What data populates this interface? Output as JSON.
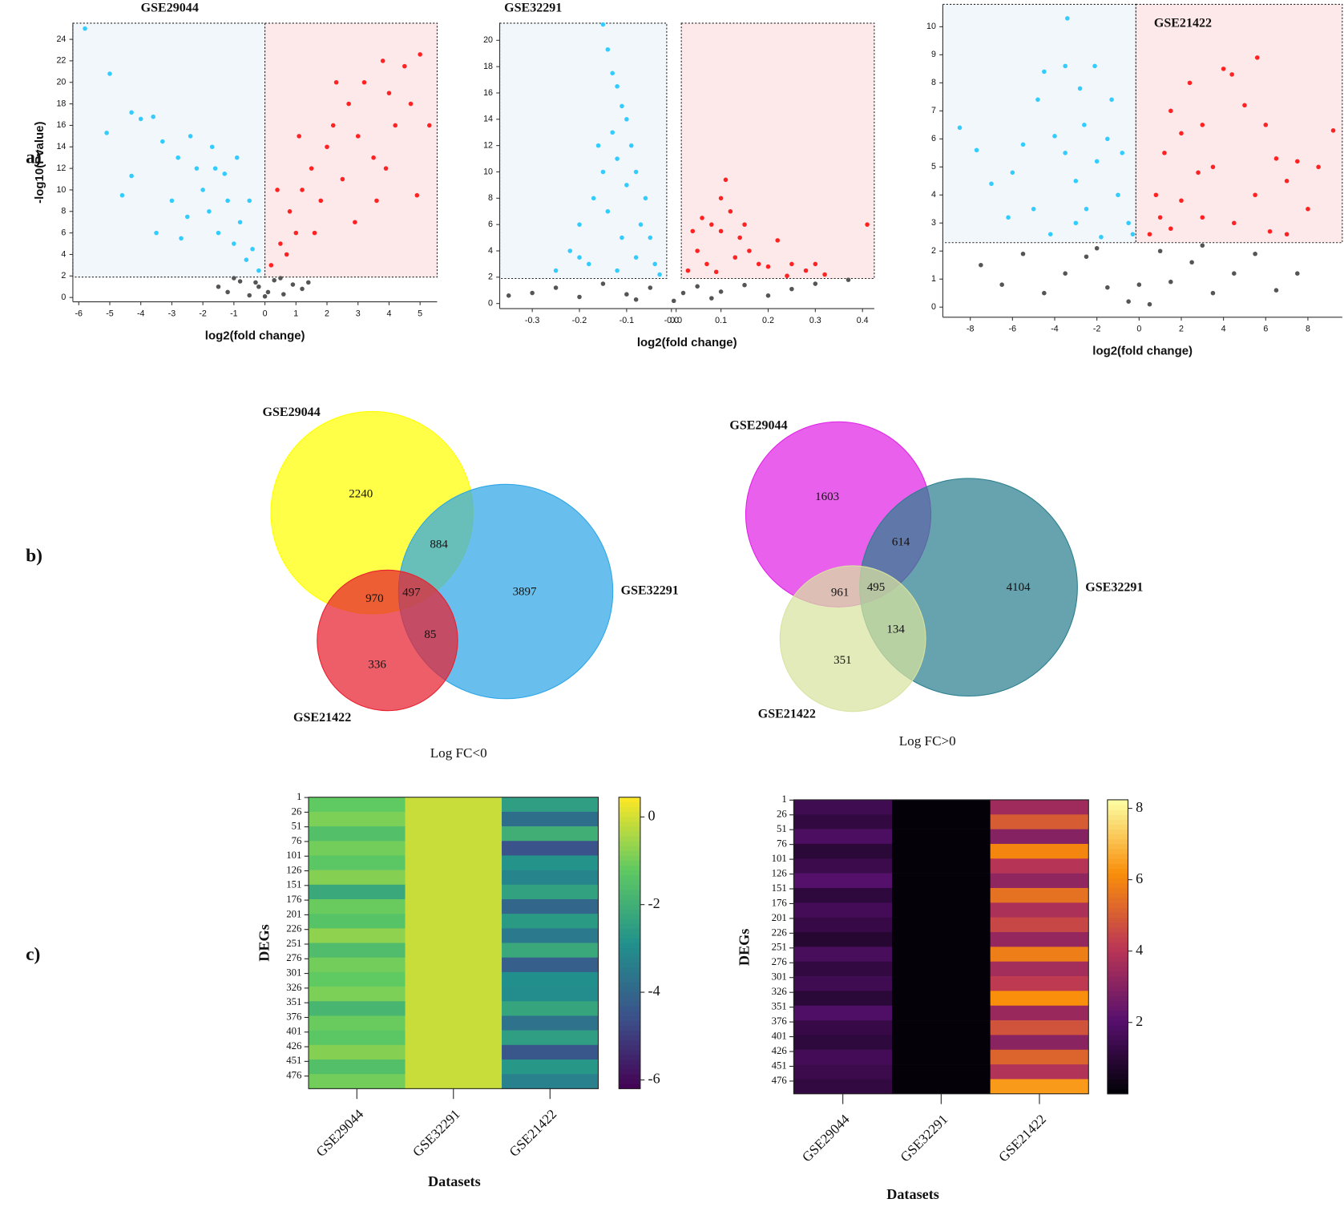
{
  "panel_labels": [
    "a)",
    "b)",
    "c)"
  ],
  "chart_data": [
    {
      "type": "scatter",
      "title": "GSE29044",
      "xlabel": "log2(fold change)",
      "ylabel": "-log10(Pvalue)",
      "xlim": [
        -6.19,
        5.55
      ],
      "ylim": [
        -0.4,
        25.5
      ],
      "xticks": [
        -6,
        -5,
        -4,
        -3,
        -2,
        -1,
        0,
        1,
        2,
        3,
        4,
        5
      ],
      "yticks": [
        0,
        2,
        4,
        6,
        8,
        10,
        12,
        14,
        16,
        18,
        20,
        22,
        24
      ],
      "cutoff_x": [
        0,
        0
      ],
      "cutoff_y": 1.9,
      "series": [
        {
          "color": "#33ccff",
          "x": [
            -5.8,
            -5,
            -5.1,
            -4.3,
            -4,
            -3.6,
            -4.3,
            -4.6,
            -3.5,
            -3.3,
            -2.8,
            -2.4,
            -2.2,
            -2,
            -1.8,
            -1.6,
            -1.5,
            -1.2,
            -1,
            -0.8,
            -0.6,
            -0.4,
            -0.2,
            -2.7,
            -1.3,
            -0.9,
            -3,
            -2.5,
            -0.5,
            -1.7
          ],
          "y": [
            25,
            20.8,
            15.3,
            17.2,
            16.6,
            16.8,
            11.3,
            9.5,
            6,
            14.5,
            13,
            15,
            12,
            10,
            8,
            12,
            6,
            9,
            5,
            7,
            3.5,
            4.5,
            2.5,
            5.5,
            11.5,
            13,
            9,
            7.5,
            9,
            14
          ]
        },
        {
          "color": "#ff2222",
          "x": [
            0.2,
            0.5,
            0.8,
            1,
            1.2,
            1.5,
            1.8,
            2,
            2.2,
            2.5,
            2.7,
            3,
            3.2,
            3.5,
            3.8,
            4,
            4.2,
            4.5,
            4.7,
            5,
            5.3,
            4.9,
            0.4,
            1.1,
            2.9,
            3.6,
            0.7,
            1.6,
            2.3,
            3.9
          ],
          "y": [
            3,
            5,
            8,
            6,
            10,
            12,
            9,
            14,
            16,
            11,
            18,
            15,
            20,
            13,
            22,
            19,
            16,
            21.5,
            18,
            22.6,
            16,
            9.5,
            10,
            15,
            7,
            9,
            4,
            6,
            20,
            12
          ]
        },
        {
          "color": "#555555",
          "x": [
            -1.5,
            -1.2,
            -0.8,
            -0.5,
            -0.2,
            0.1,
            0.3,
            0.6,
            0.9,
            1.2,
            -1,
            0.5,
            1.4,
            -0.3,
            0
          ],
          "y": [
            1,
            0.5,
            1.5,
            0.2,
            1,
            0.5,
            1.6,
            0.3,
            1.2,
            0.8,
            1.8,
            1.8,
            1.4,
            1.4,
            0.1
          ]
        }
      ]
    },
    {
      "type": "scatter",
      "title": "GSE32291",
      "xlabel": "log2(fold change)",
      "xlim": [
        -0.369,
        0.425
      ],
      "ylim": [
        -0.39,
        21.3
      ],
      "xticks": [
        -0.3,
        -0.2,
        -0.1,
        {
          "value": -0.005,
          "label": "-0.0"
        },
        {
          "value": 0.005,
          "label": "0.0"
        },
        0.1,
        0.2,
        0.3,
        0.4
      ],
      "yticks": [
        0,
        2,
        4,
        6,
        8,
        10,
        12,
        14,
        16,
        18,
        20
      ],
      "cutoff_x": [
        -0.015,
        0.016
      ],
      "cutoff_y": 1.9,
      "series": [
        {
          "color": "#33ccff",
          "x": [
            -0.15,
            -0.14,
            -0.13,
            -0.12,
            -0.11,
            -0.1,
            -0.13,
            -0.12,
            -0.15,
            -0.09,
            -0.08,
            -0.17,
            -0.2,
            -0.22,
            -0.25,
            -0.06,
            -0.05,
            -0.04,
            -0.03,
            -0.14,
            -0.11,
            -0.18,
            -0.1,
            -0.07,
            -0.16,
            -0.12,
            -0.08,
            -0.2
          ],
          "y": [
            21.2,
            19.3,
            17.5,
            16.5,
            15,
            14,
            13,
            11,
            10,
            12,
            10,
            8,
            6,
            4,
            2.5,
            8,
            5,
            3,
            2.2,
            7,
            5,
            3,
            9,
            6,
            12,
            2.5,
            3.5,
            3.5
          ]
        },
        {
          "color": "#ff2222",
          "x": [
            0.03,
            0.05,
            0.08,
            0.1,
            0.11,
            0.12,
            0.14,
            0.16,
            0.18,
            0.2,
            0.22,
            0.25,
            0.28,
            0.32,
            0.41,
            0.07,
            0.1,
            0.13,
            0.06,
            0.15,
            0.04,
            0.09,
            0.24,
            0.3
          ],
          "y": [
            2.5,
            4,
            6,
            8,
            9.4,
            7,
            5,
            4,
            3,
            2.8,
            4.8,
            3,
            2.5,
            2.2,
            6,
            3,
            5.5,
            3.5,
            6.5,
            6,
            5.5,
            2.4,
            2.1,
            3
          ]
        },
        {
          "color": "#555555",
          "x": [
            -0.35,
            -0.3,
            -0.25,
            -0.2,
            -0.15,
            -0.1,
            -0.05,
            0,
            0.02,
            0.05,
            0.1,
            0.15,
            0.2,
            0.25,
            0.3,
            0.37,
            -0.08,
            0.08
          ],
          "y": [
            0.6,
            0.8,
            1.2,
            0.5,
            1.5,
            0.7,
            1.2,
            0.2,
            0.8,
            1.3,
            0.9,
            1.4,
            0.6,
            1.1,
            1.5,
            1.8,
            0.3,
            0.4
          ]
        }
      ]
    },
    {
      "type": "scatter",
      "title": "GSE21422",
      "xlabel": "log2(fold change)",
      "xlim": [
        -9.3,
        9.63
      ],
      "ylim": [
        -0.36,
        10.8
      ],
      "xticks": [
        -8,
        -6,
        -4,
        -2,
        0,
        2,
        4,
        6,
        8
      ],
      "yticks": [
        0,
        1,
        2,
        3,
        4,
        5,
        6,
        7,
        8,
        9,
        10
      ],
      "cutoff_x": [
        -0.15,
        -0.15
      ],
      "cutoff_y": 2.3,
      "series": [
        {
          "color": "#33ccff",
          "x": [
            -8.5,
            -7.7,
            -7,
            -6.2,
            -5.5,
            -4.8,
            -4.5,
            -3.4,
            -3.5,
            -2.8,
            -2.1,
            -1.3,
            -4,
            -3.5,
            -3,
            -2.5,
            -2,
            -1.5,
            -1,
            -0.5,
            -5,
            -4.2,
            -3,
            -1.8,
            -0.3,
            -2.6,
            -6,
            -0.8
          ],
          "y": [
            6.4,
            5.6,
            4.4,
            3.2,
            5.8,
            7.4,
            8.4,
            10.3,
            8.6,
            7.8,
            8.6,
            7.4,
            6.1,
            5.5,
            4.5,
            3.5,
            5.2,
            6,
            4,
            3,
            3.5,
            2.6,
            3,
            2.5,
            2.6,
            6.5,
            4.8,
            5.5
          ]
        },
        {
          "color": "#ff2222",
          "x": [
            0.5,
            0.8,
            1.2,
            1.5,
            2,
            2.4,
            3,
            3.5,
            4,
            4.4,
            5,
            5.6,
            6,
            6.5,
            7,
            7.5,
            8,
            8.5,
            9.2,
            3,
            2,
            1.5,
            4.5,
            5.5,
            7,
            1,
            2.8,
            6.2
          ],
          "y": [
            2.6,
            4,
            5.5,
            7,
            6.2,
            8,
            6.5,
            5,
            8.5,
            8.3,
            7.2,
            8.9,
            6.5,
            5.3,
            4.5,
            5.2,
            3.5,
            5,
            6.3,
            3.2,
            3.8,
            2.8,
            3,
            4,
            2.6,
            3.2,
            4.8,
            2.7
          ]
        },
        {
          "color": "#555555",
          "x": [
            -7.5,
            -6.5,
            -5.5,
            -4.5,
            -3.5,
            -2.5,
            -1.5,
            -0.5,
            0.5,
            1.5,
            2.5,
            3.5,
            4.5,
            5.5,
            6.5,
            7.5,
            -2,
            1,
            0,
            3
          ],
          "y": [
            1.5,
            0.8,
            1.9,
            0.5,
            1.2,
            1.8,
            0.7,
            0.2,
            0.1,
            0.9,
            1.6,
            0.5,
            1.2,
            1.9,
            0.6,
            1.2,
            2.1,
            2,
            0.8,
            2.2
          ]
        }
      ]
    },
    {
      "type": "venn",
      "caption": "Log FC<0",
      "sets": [
        {
          "name": "GSE29044",
          "color": "#ffff00"
        },
        {
          "name": "GSE32291",
          "color": "#2ea6e6"
        },
        {
          "name": "GSE21422",
          "color": "#e8202f"
        }
      ],
      "values": [
        2240,
        884,
        3897,
        970,
        497,
        85,
        336
      ]
    },
    {
      "type": "venn",
      "caption": "Log FC>0",
      "sets": [
        {
          "name": "GSE29044",
          "color": "#e022e6"
        },
        {
          "name": "GSE32291",
          "color": "#2b7f8f"
        },
        {
          "name": "GSE21422",
          "color": "#d8e3a0"
        }
      ],
      "values": [
        1603,
        614,
        4104,
        961,
        495,
        134,
        351
      ]
    },
    {
      "type": "heatmap",
      "xlabel": "Datasets",
      "ylabel": "DEGs",
      "categories": [
        "GSE29044",
        "GSE32291",
        "GSE21422"
      ],
      "ylim": [
        0.5,
        497.5
      ],
      "yticks": [
        1,
        26,
        51,
        76,
        101,
        126,
        151,
        176,
        201,
        226,
        251,
        276,
        301,
        326,
        351,
        376,
        401,
        426,
        451,
        476
      ],
      "colormap": "viridis",
      "clim": [
        -6.2,
        0.45
      ],
      "cticks": [
        0,
        -2,
        -4,
        -6
      ],
      "values": [
        [
          -1.2,
          -0.1,
          -2.5
        ],
        [
          -0.9,
          -0.1,
          -3.8
        ],
        [
          -1.5,
          -0.1,
          -2.0
        ],
        [
          -1.0,
          -0.1,
          -4.5
        ],
        [
          -1.3,
          -0.1,
          -2.8
        ],
        [
          -0.8,
          -0.1,
          -3.2
        ],
        [
          -2.2,
          -0.1,
          -2.4
        ],
        [
          -1.1,
          -0.1,
          -4.0
        ],
        [
          -1.4,
          -0.1,
          -2.6
        ],
        [
          -0.7,
          -0.1,
          -3.5
        ],
        [
          -1.6,
          -0.1,
          -2.2
        ],
        [
          -1.0,
          -0.1,
          -4.2
        ],
        [
          -1.2,
          -0.1,
          -2.9
        ],
        [
          -0.9,
          -0.1,
          -3.0
        ],
        [
          -1.8,
          -0.1,
          -2.3
        ],
        [
          -1.1,
          -0.1,
          -3.7
        ],
        [
          -1.3,
          -0.1,
          -2.5
        ],
        [
          -0.8,
          -0.1,
          -4.4
        ],
        [
          -1.5,
          -0.1,
          -2.7
        ],
        [
          -1.0,
          -0.1,
          -3.3
        ]
      ]
    },
    {
      "type": "heatmap",
      "xlabel": "Datasets",
      "ylabel": "DEGs",
      "categories": [
        "GSE29044",
        "GSE32291",
        "GSE21422"
      ],
      "ylim": [
        0.5,
        497.5
      ],
      "yticks": [
        1,
        26,
        51,
        76,
        101,
        126,
        151,
        176,
        201,
        226,
        251,
        276,
        301,
        326,
        351,
        376,
        401,
        426,
        451,
        476
      ],
      "colormap": "inferno",
      "clim": [
        0,
        8.24
      ],
      "cticks": [
        2,
        4,
        6,
        8
      ],
      "values": [
        [
          1.5,
          0.1,
          3.5
        ],
        [
          1.2,
          0.1,
          5.0
        ],
        [
          1.8,
          0.1,
          3.0
        ],
        [
          1.0,
          0.1,
          6.0
        ],
        [
          1.4,
          0.1,
          4.0
        ],
        [
          2.0,
          0.1,
          3.2
        ],
        [
          1.1,
          0.1,
          5.5
        ],
        [
          1.6,
          0.1,
          3.8
        ],
        [
          1.3,
          0.1,
          4.5
        ],
        [
          0.9,
          0.1,
          3.3
        ],
        [
          1.7,
          0.1,
          5.8
        ],
        [
          1.2,
          0.1,
          3.6
        ],
        [
          1.5,
          0.1,
          4.2
        ],
        [
          1.0,
          0.1,
          6.2
        ],
        [
          1.9,
          0.1,
          3.4
        ],
        [
          1.3,
          0.1,
          4.8
        ],
        [
          1.1,
          0.1,
          3.1
        ],
        [
          1.6,
          0.1,
          5.2
        ],
        [
          1.4,
          0.1,
          3.9
        ],
        [
          1.2,
          0.1,
          6.4
        ]
      ]
    }
  ]
}
